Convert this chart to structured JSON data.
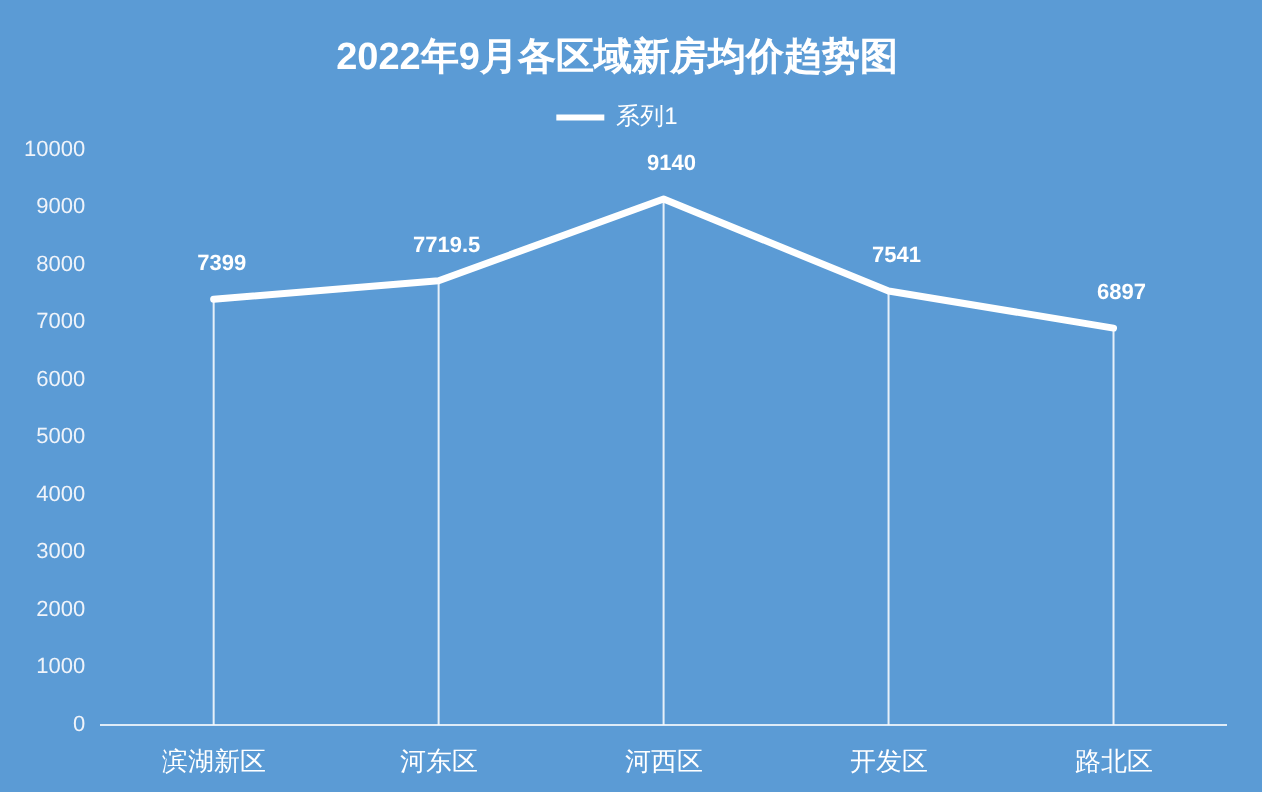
{
  "chart_data": {
    "type": "line",
    "title": "2022年9月各区域新房均价趋势图",
    "categories": [
      "滨湖新区",
      "河东区",
      "河西区",
      "开发区",
      "路北区"
    ],
    "series": [
      {
        "name": "系列1",
        "color": "#ffffff",
        "values": [
          7399,
          7719.5,
          9140,
          7541,
          6897
        ]
      }
    ],
    "ylim": [
      0,
      10000
    ],
    "yticks": [
      0,
      1000,
      2000,
      3000,
      4000,
      5000,
      6000,
      7000,
      8000,
      9000,
      10000
    ],
    "grid": "x",
    "legend": "top",
    "marker": "none",
    "line_style": "solid",
    "data_labels": true
  }
}
